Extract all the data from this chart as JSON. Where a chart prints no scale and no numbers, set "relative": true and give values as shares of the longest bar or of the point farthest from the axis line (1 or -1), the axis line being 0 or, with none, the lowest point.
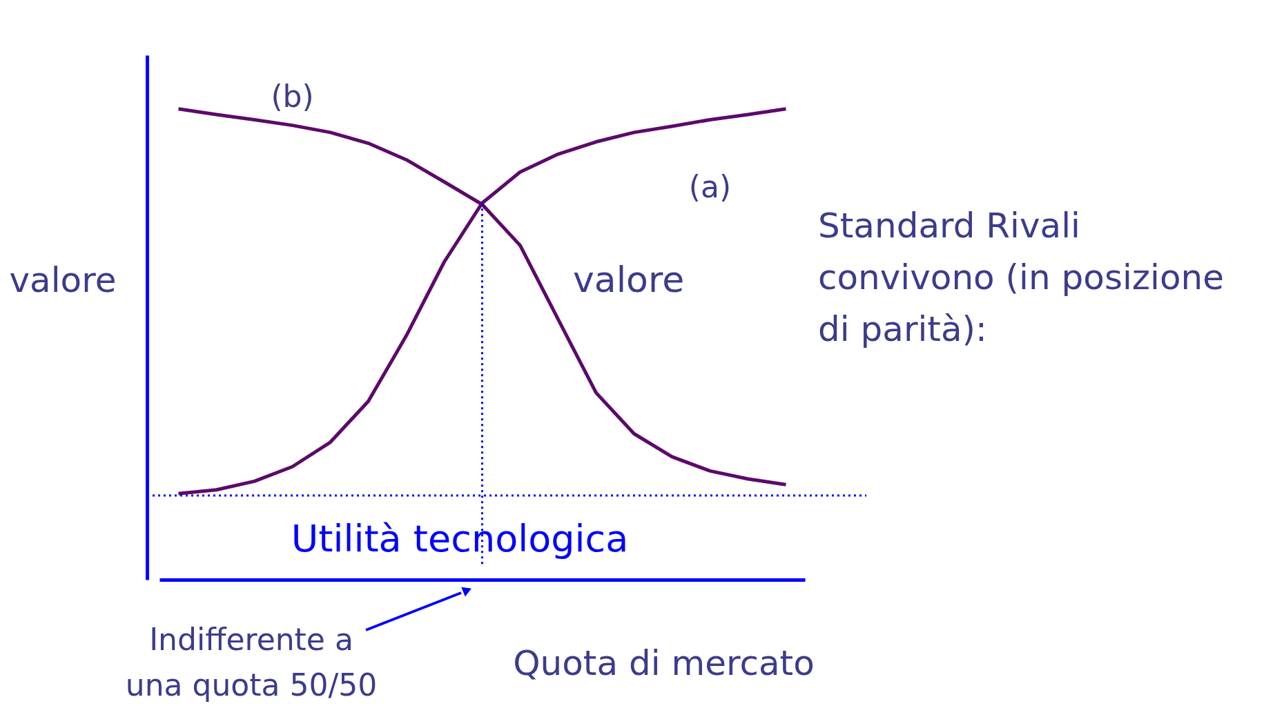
{
  "chart_data": {
    "type": "line",
    "relative": true,
    "ylabel": "valore",
    "xlabel": "Quota di mercato",
    "categories": [
      null,
      null,
      null,
      null,
      null,
      null,
      null,
      null,
      null,
      null,
      null,
      null,
      null,
      null,
      null,
      null,
      null
    ],
    "series": [
      {
        "name": "(a)",
        "color": "#5c0a6a",
        "values": [
          0.183,
          0.191,
          0.209,
          0.24,
          0.292,
          0.379,
          0.518,
          0.675,
          0.8,
          0.866,
          0.904,
          0.93,
          0.95,
          0.963,
          0.977,
          0.988,
          1.0
        ]
      },
      {
        "name": "(b)",
        "color": "#5c0a6a",
        "values": [
          1.0,
          0.988,
          0.977,
          0.965,
          0.95,
          0.927,
          0.892,
          0.845,
          0.797,
          0.71,
          0.553,
          0.397,
          0.31,
          0.261,
          0.231,
          0.214,
          0.202
        ]
      }
    ],
    "ref_lines": [
      {
        "axis": "y",
        "value": 0.179,
        "label": "Utilità tecnologica",
        "color": "#0000ff",
        "line_style": "dotted"
      }
    ],
    "annotations": [
      "valore",
      "Standard Rivali\nconvivono (in posizione\ndi parità):",
      "Indifferente a\nuna quota 50/50"
    ],
    "legend": false,
    "grid": false,
    "marker": "none",
    "line_style": "solid"
  }
}
